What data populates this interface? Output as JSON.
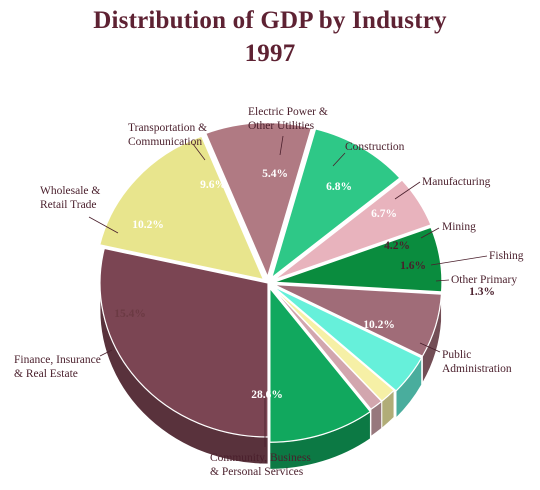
{
  "chart_data": {
    "type": "pie",
    "title": "Distribution of GDP by Industry",
    "subtitle": "1997",
    "style": "3d-exploded",
    "slices": [
      {
        "label": "Community, Business & Personal Services",
        "value": 28.6,
        "value_label": "28.6%",
        "color": "#7b4553"
      },
      {
        "label": "Finance, Insurance & Real Estate",
        "value": 15.4,
        "value_label": "15.4%",
        "color": "#e8e58d"
      },
      {
        "label": "Wholesale & Retail Trade",
        "value": 10.2,
        "value_label": "10.2%",
        "color": "#b07a83"
      },
      {
        "label": "Transportation & Communication",
        "value": 9.6,
        "value_label": "9.6%",
        "color": "#2ec887"
      },
      {
        "label": "Electric Power & Other Utilities",
        "value": 5.4,
        "value_label": "5.4%",
        "color": "#e8b3bd"
      },
      {
        "label": "Construction",
        "value": 6.8,
        "value_label": "6.8%",
        "color": "#0a8c3e"
      },
      {
        "label": "Manufacturing",
        "value": 6.7,
        "value_label": "6.7%",
        "color": "#a06c78"
      },
      {
        "label": "Mining",
        "value": 4.2,
        "value_label": "4.2%",
        "color": "#66f0da"
      },
      {
        "label": "Fishing",
        "value": 1.6,
        "value_label": "1.6%",
        "color": "#f6f0a6"
      },
      {
        "label": "Other Primary",
        "value": 1.3,
        "value_label": "1.3%",
        "color": "#d2a6ae"
      },
      {
        "label": "Public Administration",
        "value": 10.2,
        "value_label": "10.2%",
        "color": "#11a85e"
      }
    ]
  }
}
